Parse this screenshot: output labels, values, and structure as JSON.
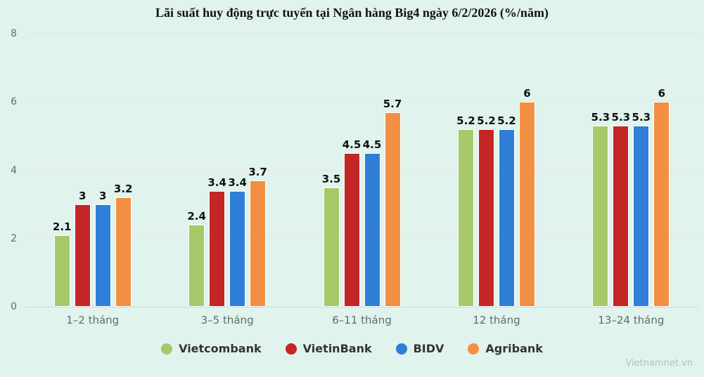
{
  "chart_data": {
    "type": "bar",
    "title": "Lãi suất huy động trực tuyến tại Ngân hàng Big4 ngày 6/2/2026 (%/năm)",
    "categories": [
      "1–2 tháng",
      "3–5 tháng",
      "6–11 tháng",
      "12 tháng",
      "13–24 tháng"
    ],
    "series": [
      {
        "name": "Vietcombank",
        "color": "#a6c96a",
        "values": [
          2.1,
          2.4,
          3.5,
          5.2,
          5.3
        ]
      },
      {
        "name": "VietinBank",
        "color": "#c42525",
        "values": [
          3,
          3.4,
          4.5,
          5.2,
          5.3
        ]
      },
      {
        "name": "BIDV",
        "color": "#2f7ed8",
        "values": [
          3,
          3.4,
          4.5,
          5.2,
          5.3
        ]
      },
      {
        "name": "Agribank",
        "color": "#f28f43",
        "values": [
          3.2,
          3.7,
          5.7,
          6,
          6
        ]
      }
    ],
    "xlabel": "",
    "ylabel": "",
    "ylim": [
      0,
      8
    ],
    "yticks": [
      0,
      2,
      4,
      6,
      8
    ],
    "grid": true,
    "legend_position": "bottom"
  },
  "watermark": "Vietnamnet.vn",
  "colors": {
    "background": "#e0f3ed",
    "gridline": "#e8e4e6",
    "axis_line": "#ccd6eb",
    "tick_label": "#5e6e6e",
    "category_label": "#5e6e6e",
    "value_label": "#111111",
    "legend_label": "#333333",
    "title": "#111111",
    "watermark": "#aec4bd"
  }
}
